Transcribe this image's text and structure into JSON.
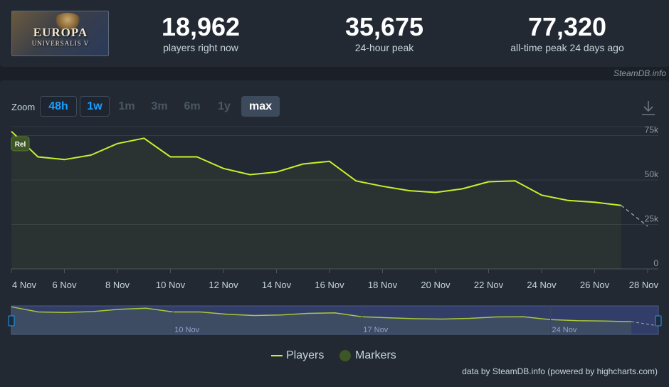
{
  "header": {
    "logo": {
      "title": "EUROPA",
      "subtitle": "UNIVERSALIS V"
    },
    "stats": [
      {
        "value": "18,962",
        "label": "players right now"
      },
      {
        "value": "35,675",
        "label": "24-hour peak"
      },
      {
        "value": "77,320",
        "label": "all-time peak 24 days ago"
      }
    ],
    "credit": "SteamDB.info"
  },
  "toolbar": {
    "zoom_label": "Zoom",
    "zoom_buttons": [
      {
        "label": "48h",
        "state": "enabled"
      },
      {
        "label": "1w",
        "state": "enabled"
      },
      {
        "label": "1m",
        "state": "disabled"
      },
      {
        "label": "3m",
        "state": "disabled"
      },
      {
        "label": "6m",
        "state": "disabled"
      },
      {
        "label": "1y",
        "state": "disabled"
      },
      {
        "label": "max",
        "state": "selected"
      }
    ],
    "download_icon": "download-icon"
  },
  "chart_data": {
    "type": "line",
    "title": "",
    "xlabel": "",
    "ylabel": "",
    "x_tick_labels": [
      "4 Nov",
      "6 Nov",
      "8 Nov",
      "10 Nov",
      "12 Nov",
      "14 Nov",
      "16 Nov",
      "18 Nov",
      "20 Nov",
      "22 Nov",
      "24 Nov",
      "26 Nov",
      "28 Nov"
    ],
    "y_tick_labels": [
      "0",
      "25k",
      "50k",
      "75k"
    ],
    "ylim": [
      0,
      80000
    ],
    "grid": true,
    "series": [
      {
        "name": "Players",
        "color": "#c4f22b",
        "points": [
          {
            "x": "2025-11-04",
            "y": 77320
          },
          {
            "x": "2025-11-05",
            "y": 63000
          },
          {
            "x": "2025-11-06",
            "y": 61500
          },
          {
            "x": "2025-11-07",
            "y": 64000
          },
          {
            "x": "2025-11-08",
            "y": 70500
          },
          {
            "x": "2025-11-09",
            "y": 73500
          },
          {
            "x": "2025-11-10",
            "y": 63000
          },
          {
            "x": "2025-11-11",
            "y": 63000
          },
          {
            "x": "2025-11-12",
            "y": 56500
          },
          {
            "x": "2025-11-13",
            "y": 53000
          },
          {
            "x": "2025-11-14",
            "y": 54500
          },
          {
            "x": "2025-11-15",
            "y": 59000
          },
          {
            "x": "2025-11-16",
            "y": 60500
          },
          {
            "x": "2025-11-17",
            "y": 49500
          },
          {
            "x": "2025-11-18",
            "y": 46500
          },
          {
            "x": "2025-11-19",
            "y": 44000
          },
          {
            "x": "2025-11-20",
            "y": 43000
          },
          {
            "x": "2025-11-21",
            "y": 45000
          },
          {
            "x": "2025-11-22",
            "y": 49000
          },
          {
            "x": "2025-11-23",
            "y": 49500
          },
          {
            "x": "2025-11-24",
            "y": 41500
          },
          {
            "x": "2025-11-25",
            "y": 38500
          },
          {
            "x": "2025-11-26",
            "y": 37500
          },
          {
            "x": "2025-11-27",
            "y": 35675
          }
        ],
        "projection": [
          {
            "x": "2025-11-27",
            "y": 35675
          },
          {
            "x": "2025-11-28",
            "y": 24000
          }
        ]
      }
    ],
    "markers": [
      {
        "x": "2025-11-04",
        "label": "Rel"
      }
    ],
    "navigator": {
      "tick_labels": [
        "10 Nov",
        "17 Nov",
        "24 Nov"
      ]
    },
    "legend": {
      "position": "bottom-center",
      "items": [
        {
          "label": "Players",
          "color": "#c4f22b"
        },
        {
          "label": "Markers",
          "color": "#3e5526"
        }
      ]
    }
  },
  "footer": {
    "credit": "data by SteamDB.info (powered by highcharts.com)"
  }
}
